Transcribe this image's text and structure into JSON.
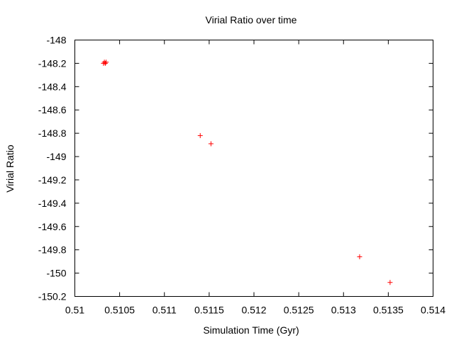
{
  "chart_data": {
    "type": "scatter",
    "title": "Virial Ratio over time",
    "xlabel": "Simulation Time (Gyr)",
    "ylabel": "Virial Ratio",
    "xlim": [
      0.51,
      0.514
    ],
    "ylim": [
      -150.2,
      -148
    ],
    "xticks": [
      0.51,
      0.5105,
      0.511,
      0.5115,
      0.512,
      0.5125,
      0.513,
      0.5135,
      0.514
    ],
    "xtick_labels": [
      "0.51",
      "0.5105",
      "0.511",
      "0.5115",
      "0.512",
      "0.5125",
      "0.513",
      "0.5135",
      "0.514"
    ],
    "yticks": [
      -148,
      -148.2,
      -148.4,
      -148.6,
      -148.8,
      -149,
      -149.2,
      -149.4,
      -149.6,
      -149.8,
      -150,
      -150.2
    ],
    "ytick_labels": [
      "-148",
      "-148.2",
      "-148.4",
      "-148.6",
      "-148.8",
      "-149",
      "-149.2",
      "-149.4",
      "-149.6",
      "-149.8",
      "-150",
      "-150.2"
    ],
    "grid": false,
    "marker": "+",
    "series": [
      {
        "color": "#ff0000",
        "points": [
          {
            "x": 0.51032,
            "y": -148.2
          },
          {
            "x": 0.51033,
            "y": -148.19
          },
          {
            "x": 0.51034,
            "y": -148.2
          },
          {
            "x": 0.51035,
            "y": -148.19
          },
          {
            "x": 0.5114,
            "y": -148.82
          },
          {
            "x": 0.51152,
            "y": -148.89
          },
          {
            "x": 0.51318,
            "y": -149.86
          },
          {
            "x": 0.51352,
            "y": -150.08
          }
        ]
      }
    ]
  }
}
